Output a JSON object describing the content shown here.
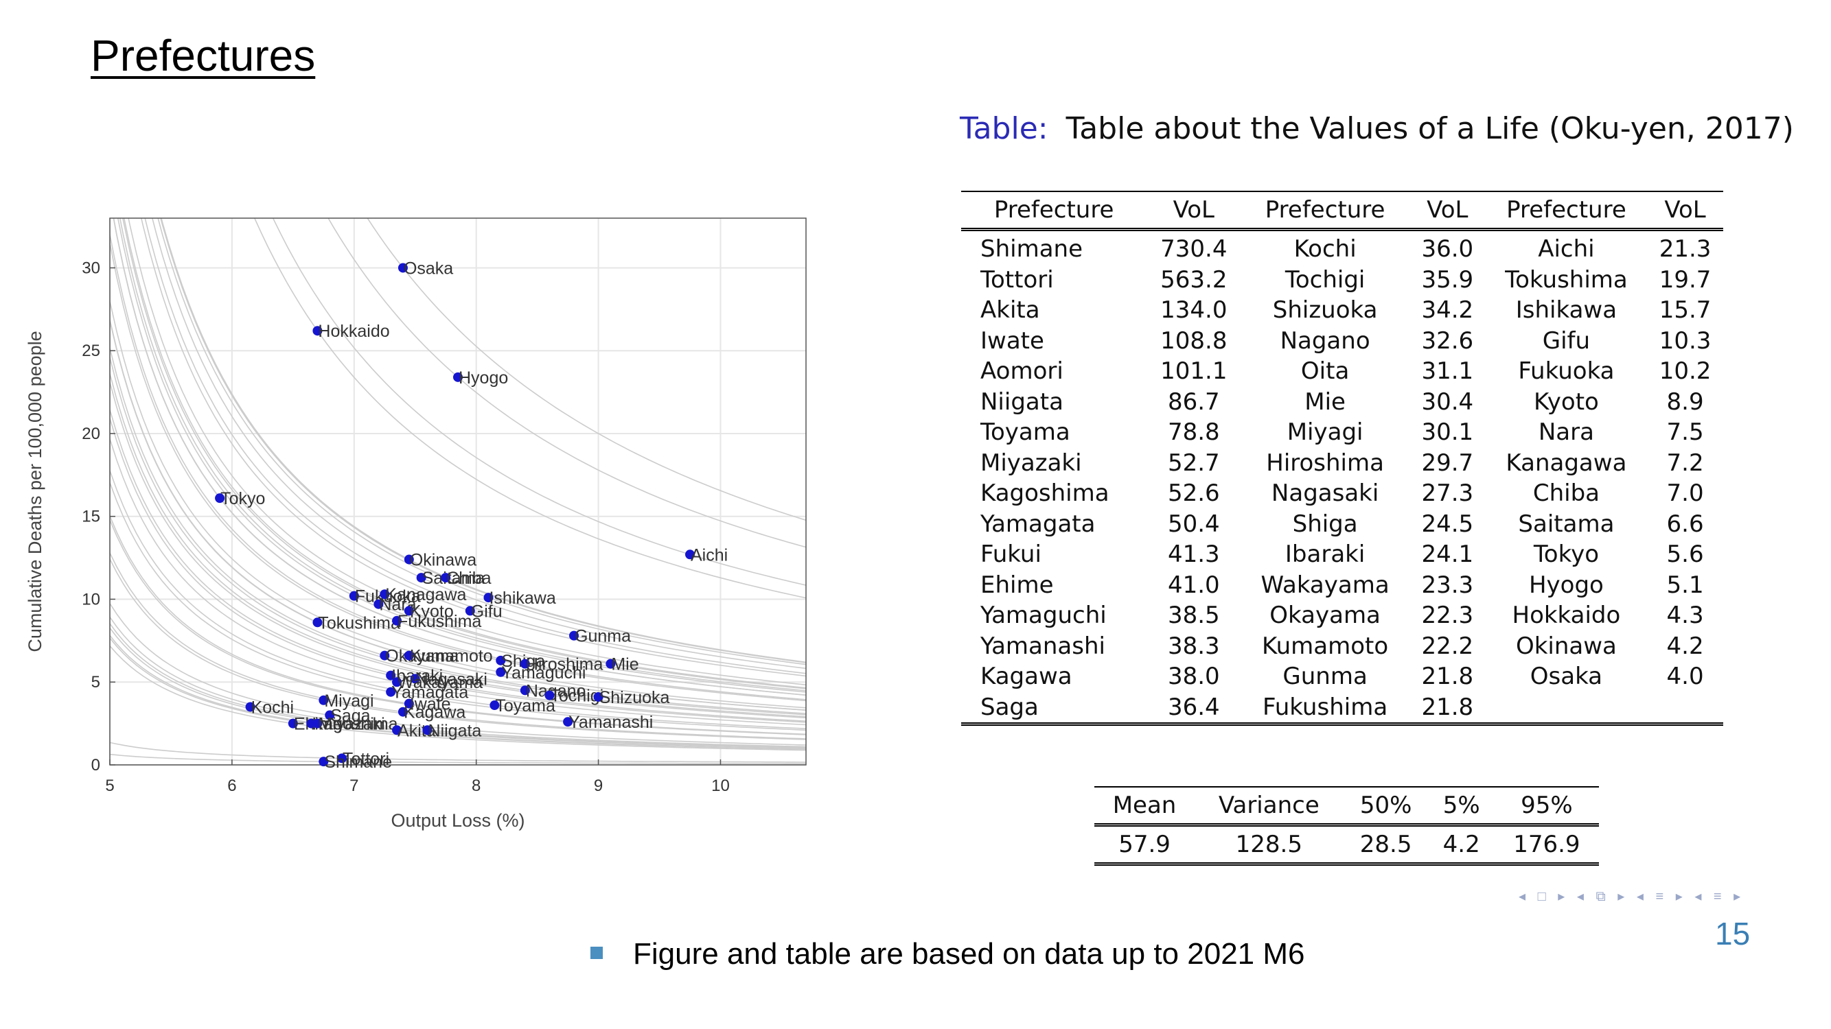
{
  "slide": {
    "title": "Prefectures",
    "bullet": "Figure and table are based on data up to 2021 M6",
    "page_number": "15",
    "nav_icons": [
      "◂ □ ▸",
      "◂ ⧉ ▸",
      "◂ ≡ ▸",
      "◂ ≡ ▸"
    ]
  },
  "chart_data": {
    "type": "scatter",
    "title": "",
    "xlabel": "Output Loss (%)",
    "ylabel": "Cumulative Deaths per 100,000 people",
    "xlim": [
      5,
      10.7
    ],
    "ylim": [
      0,
      33
    ],
    "xticks": [
      5,
      6,
      7,
      8,
      9,
      10
    ],
    "yticks": [
      0,
      5,
      10,
      15,
      20,
      25,
      30
    ],
    "grid": true,
    "point_color": "#1515d0",
    "curve_color": "#cccccc",
    "points": [
      {
        "label": "Osaka",
        "x": 7.4,
        "y": 30.0
      },
      {
        "label": "Hokkaido",
        "x": 6.7,
        "y": 26.2
      },
      {
        "label": "Hyogo",
        "x": 7.85,
        "y": 23.4
      },
      {
        "label": "Tokyo",
        "x": 5.9,
        "y": 16.1
      },
      {
        "label": "Aichi",
        "x": 9.75,
        "y": 12.7
      },
      {
        "label": "Okinawa",
        "x": 7.45,
        "y": 12.4
      },
      {
        "label": "Saitama",
        "x": 7.55,
        "y": 11.3
      },
      {
        "label": "Chiba",
        "x": 7.75,
        "y": 11.3
      },
      {
        "label": "Fukuoka",
        "x": 7.0,
        "y": 10.2
      },
      {
        "label": "Kanagawa",
        "x": 7.25,
        "y": 10.3
      },
      {
        "label": "Nara",
        "x": 7.2,
        "y": 9.7
      },
      {
        "label": "Ishikawa",
        "x": 8.1,
        "y": 10.1
      },
      {
        "label": "Kyoto",
        "x": 7.45,
        "y": 9.3
      },
      {
        "label": "Gifu",
        "x": 7.95,
        "y": 9.3
      },
      {
        "label": "Tokushima",
        "x": 6.7,
        "y": 8.6
      },
      {
        "label": "Fukushima",
        "x": 7.35,
        "y": 8.7
      },
      {
        "label": "Gunma",
        "x": 8.8,
        "y": 7.8
      },
      {
        "label": "Okayama",
        "x": 7.25,
        "y": 6.6
      },
      {
        "label": "Kumamoto",
        "x": 7.45,
        "y": 6.6
      },
      {
        "label": "Shiga",
        "x": 8.2,
        "y": 6.3
      },
      {
        "label": "Hiroshima",
        "x": 8.4,
        "y": 6.1
      },
      {
        "label": "Yamaguchi",
        "x": 8.2,
        "y": 5.6
      },
      {
        "label": "Mie",
        "x": 9.1,
        "y": 6.1
      },
      {
        "label": "Ibaraki",
        "x": 7.3,
        "y": 5.4
      },
      {
        "label": "Nagasaki",
        "x": 7.5,
        "y": 5.2
      },
      {
        "label": "Wakayama",
        "x": 7.35,
        "y": 5.0
      },
      {
        "label": "Yamagata",
        "x": 7.3,
        "y": 4.4
      },
      {
        "label": "Nagano",
        "x": 8.4,
        "y": 4.5
      },
      {
        "label": "Tochigi",
        "x": 8.6,
        "y": 4.2
      },
      {
        "label": "Shizuoka",
        "x": 9.0,
        "y": 4.1
      },
      {
        "label": "Kochi",
        "x": 6.15,
        "y": 3.5
      },
      {
        "label": "Miyagi",
        "x": 6.75,
        "y": 3.9
      },
      {
        "label": "Iwate",
        "x": 7.45,
        "y": 3.7
      },
      {
        "label": "Toyama",
        "x": 8.15,
        "y": 3.6
      },
      {
        "label": "Saga",
        "x": 6.8,
        "y": 3.0
      },
      {
        "label": "Kagawa",
        "x": 7.4,
        "y": 3.2
      },
      {
        "label": "Yamanashi",
        "x": 8.75,
        "y": 2.6
      },
      {
        "label": "Ehime",
        "x": 6.5,
        "y": 2.5
      },
      {
        "label": "Kagoshima",
        "x": 6.65,
        "y": 2.5
      },
      {
        "label": "Miyazaki",
        "x": 6.7,
        "y": 2.5
      },
      {
        "label": "Akita",
        "x": 7.35,
        "y": 2.1
      },
      {
        "label": "Niigata",
        "x": 7.6,
        "y": 2.1
      },
      {
        "label": "Tottori",
        "x": 6.9,
        "y": 0.4
      },
      {
        "label": "Shimane",
        "x": 6.75,
        "y": 0.2
      }
    ]
  },
  "vol_table": {
    "caption_label": "Table:",
    "caption_text": "Table about the Values of a Life (Oku-yen, 2017)",
    "headers": [
      "Prefecture",
      "VoL",
      "Prefecture",
      "VoL",
      "Prefecture",
      "VoL"
    ],
    "rows": [
      [
        "Shimane",
        "730.4",
        "Kochi",
        "36.0",
        "Aichi",
        "21.3"
      ],
      [
        "Tottori",
        "563.2",
        "Tochigi",
        "35.9",
        "Tokushima",
        "19.7"
      ],
      [
        "Akita",
        "134.0",
        "Shizuoka",
        "34.2",
        "Ishikawa",
        "15.7"
      ],
      [
        "Iwate",
        "108.8",
        "Nagano",
        "32.6",
        "Gifu",
        "10.3"
      ],
      [
        "Aomori",
        "101.1",
        "Oita",
        "31.1",
        "Fukuoka",
        "10.2"
      ],
      [
        "Niigata",
        "86.7",
        "Mie",
        "30.4",
        "Kyoto",
        "8.9"
      ],
      [
        "Toyama",
        "78.8",
        "Miyagi",
        "30.1",
        "Nara",
        "7.5"
      ],
      [
        "Miyazaki",
        "52.7",
        "Hiroshima",
        "29.7",
        "Kanagawa",
        "7.2"
      ],
      [
        "Kagoshima",
        "52.6",
        "Nagasaki",
        "27.3",
        "Chiba",
        "7.0"
      ],
      [
        "Yamagata",
        "50.4",
        "Shiga",
        "24.5",
        "Saitama",
        "6.6"
      ],
      [
        "Fukui",
        "41.3",
        "Ibaraki",
        "24.1",
        "Tokyo",
        "5.6"
      ],
      [
        "Ehime",
        "41.0",
        "Wakayama",
        "23.3",
        "Hyogo",
        "5.1"
      ],
      [
        "Yamaguchi",
        "38.5",
        "Okayama",
        "22.3",
        "Hokkaido",
        "4.3"
      ],
      [
        "Yamanashi",
        "38.3",
        "Kumamoto",
        "22.2",
        "Okinawa",
        "4.2"
      ],
      [
        "Kagawa",
        "38.0",
        "Gunma",
        "21.8",
        "Osaka",
        "4.0"
      ],
      [
        "Saga",
        "36.4",
        "Fukushima",
        "21.8",
        "",
        ""
      ]
    ]
  },
  "stats_table": {
    "headers": [
      "Mean",
      "Variance",
      "50%",
      "5%",
      "95%"
    ],
    "values": [
      "57.9",
      "128.5",
      "28.5",
      "4.2",
      "176.9"
    ]
  }
}
